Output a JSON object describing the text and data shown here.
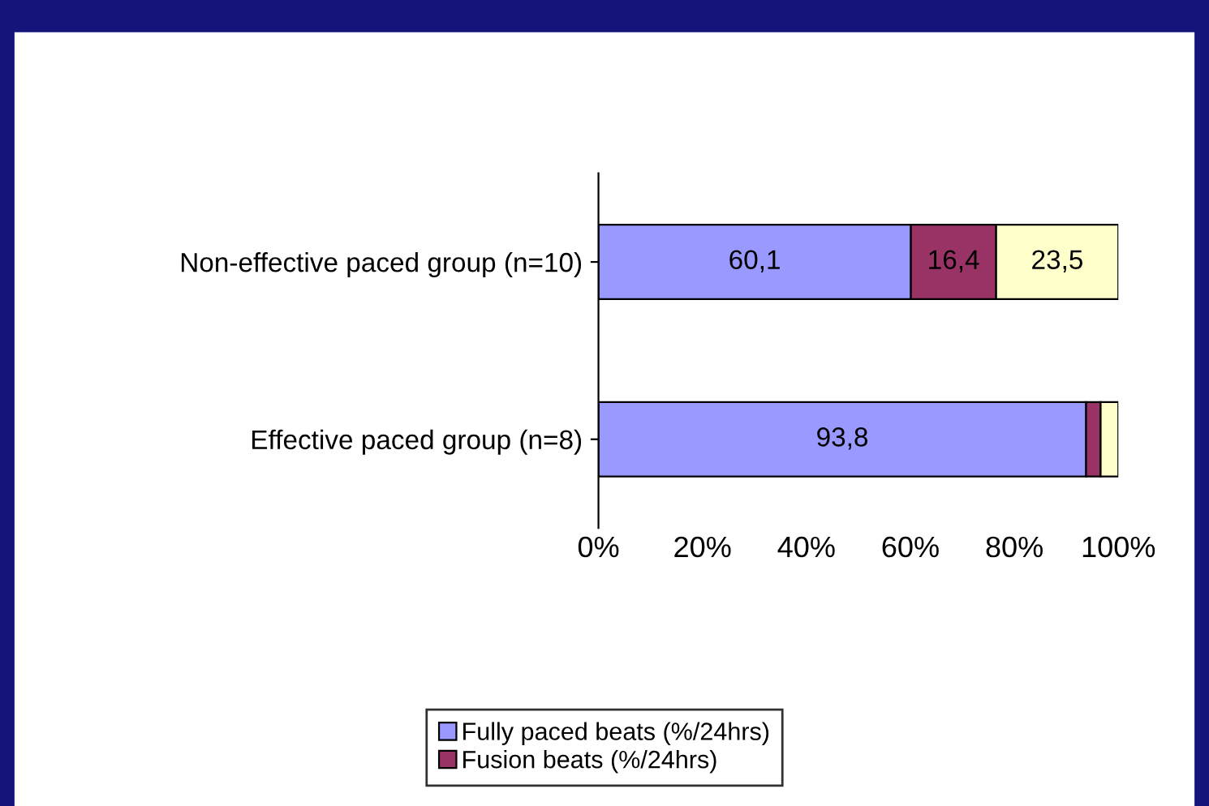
{
  "chart_data": {
    "type": "bar",
    "orientation": "horizontal",
    "stacked": true,
    "categories": [
      "Non-effective paced group (n=10)",
      "Effective paced group (n=8)"
    ],
    "series": [
      {
        "name": "Fully paced beats (%/24hrs)",
        "color": "#9999ff",
        "values": [
          60.1,
          93.8
        ],
        "value_labels": [
          "60,1",
          "93,8"
        ]
      },
      {
        "name": "Fusion beats (%/24hrs)",
        "color": "#993366",
        "values": [
          16.4,
          2.8
        ],
        "value_labels": [
          "16,4",
          null
        ]
      },
      {
        "color": "#ffffcc",
        "values": [
          23.5,
          3.4
        ],
        "value_labels": [
          "23,5",
          null
        ]
      }
    ],
    "xlim": [
      0,
      100
    ],
    "xticks": [
      {
        "value": 0,
        "label": "0%"
      },
      {
        "value": 20,
        "label": "20%"
      },
      {
        "value": 40,
        "label": "40%"
      },
      {
        "value": 60,
        "label": "60%"
      },
      {
        "value": 80,
        "label": "80%"
      },
      {
        "value": 100,
        "label": "100%"
      }
    ],
    "grid": false,
    "legend": "bottom"
  }
}
